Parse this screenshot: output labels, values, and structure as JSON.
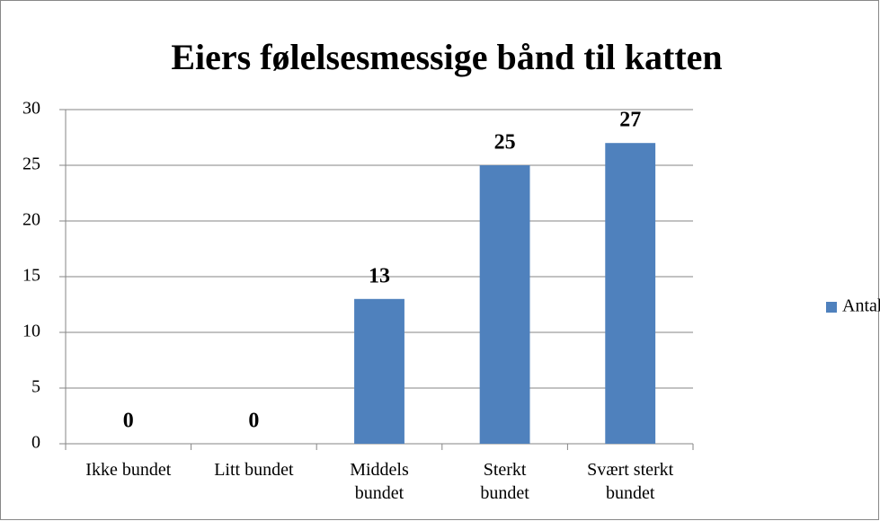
{
  "chart_data": {
    "type": "bar",
    "title": "Eiers følelsesmessige bånd til katten",
    "categories": [
      "Ikke bundet",
      "Litt bundet",
      "Middels\nbundet",
      "Sterkt\nbundet",
      "Svært sterkt\nbundet"
    ],
    "series": [
      {
        "name": "Antall katter",
        "color": "#4f81bd",
        "values": [
          0,
          0,
          13,
          25,
          27
        ]
      }
    ],
    "ylim": [
      0,
      30
    ],
    "yticks": [
      0,
      5,
      10,
      15,
      20,
      25,
      30
    ],
    "grid": true,
    "legend": "right"
  }
}
